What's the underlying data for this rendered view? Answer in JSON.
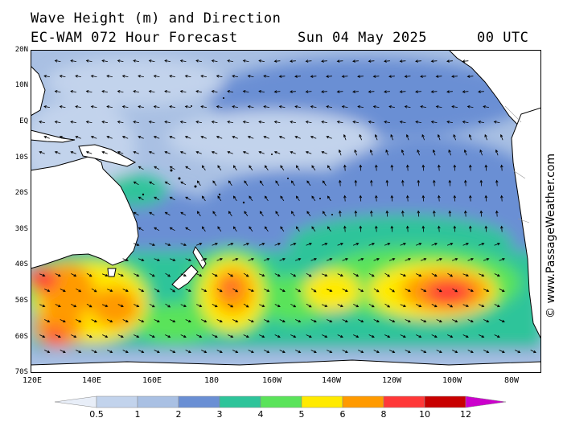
{
  "header": {
    "title": "Wave Height (m) and Direction",
    "model": "EC-WAM 072 Hour Forecast",
    "date": "Sun 04 May 2025",
    "time": "00 UTC"
  },
  "credit": "© www.PassageWeather.com",
  "lat_labels": [
    "20N",
    "10N",
    "EQ",
    "10S",
    "20S",
    "30S",
    "40S",
    "50S",
    "60S",
    "70S"
  ],
  "lon_labels": [
    "120E",
    "140E",
    "160E",
    "180",
    "160W",
    "140W",
    "120W",
    "100W",
    "80W"
  ],
  "legend": {
    "labels": [
      "0.5",
      "1",
      "2",
      "3",
      "4",
      "5",
      "6",
      "8",
      "10",
      "12"
    ],
    "colors": [
      "#e8eef8",
      "#c2d3ec",
      "#a9c0e3",
      "#6a8fd4",
      "#2ec49a",
      "#5ae35a",
      "#ffea00",
      "#ff9a00",
      "#ff3838",
      "#c80000",
      "#cc00cc"
    ]
  },
  "colors": {
    "land": "#ffffff",
    "coast": "#000000",
    "arrow": "#000000"
  }
}
